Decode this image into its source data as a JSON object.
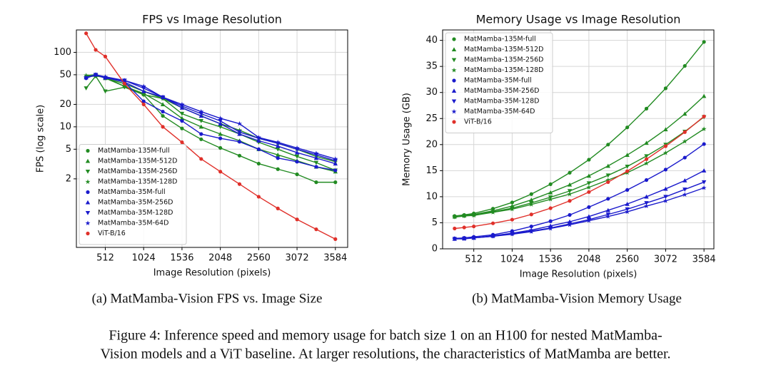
{
  "chart_data": [
    {
      "type": "line",
      "title": "FPS vs Image Resolution",
      "xlabel": "Image Resolution (pixels)",
      "ylabel": "FPS (log scale)",
      "yscale": "log",
      "grid": true,
      "legend": "lower left",
      "xlim": [
        126,
        3748
      ],
      "xticks": [
        512,
        1024,
        1536,
        2048,
        2560,
        3072,
        3584
      ],
      "ylim": [
        0.24,
        200
      ],
      "yticks": [
        2,
        5,
        10,
        20,
        50,
        100
      ],
      "x": [
        256,
        384,
        512,
        768,
        1024,
        1280,
        1536,
        1792,
        2048,
        2304,
        2560,
        2816,
        3072,
        3328,
        3584
      ],
      "series": [
        {
          "name": "MatMamba-135M-full",
          "color": "#228b22",
          "marker": "circle",
          "values": [
            47,
            48,
            46,
            35,
            27,
            14,
            9.5,
            6.8,
            5.2,
            4.1,
            3.2,
            2.7,
            2.3,
            1.8,
            1.8
          ]
        },
        {
          "name": "MatMamba-135M-512D",
          "color": "#228b22",
          "marker": "triangle-up",
          "values": [
            48,
            50,
            45,
            35,
            28,
            20,
            13,
            10,
            8,
            6.5,
            5,
            4.2,
            3.5,
            2.9,
            2.5
          ]
        },
        {
          "name": "MatMamba-135M-256D",
          "color": "#228b22",
          "marker": "triangle-down",
          "values": [
            33,
            48,
            30,
            34,
            27,
            24,
            15,
            12,
            10,
            8,
            6.2,
            5,
            4,
            3.3,
            2.6
          ]
        },
        {
          "name": "MatMamba-135M-128D",
          "color": "#228b22",
          "marker": "star",
          "values": [
            49,
            50,
            45,
            38,
            30,
            24,
            18,
            14,
            11,
            9,
            7,
            6,
            5,
            4,
            3.4
          ]
        },
        {
          "name": "MatMamba-35M-full",
          "color": "#1a1acc",
          "marker": "circle",
          "values": [
            45,
            50,
            46,
            40,
            22,
            16,
            12,
            8,
            7,
            6.3,
            5,
            3.8,
            3.4,
            2.9,
            2.6
          ]
        },
        {
          "name": "MatMamba-35M-256D",
          "color": "#1a1acc",
          "marker": "triangle-up",
          "values": [
            46,
            50,
            46,
            40,
            30,
            25,
            18,
            14,
            11,
            8,
            6.5,
            5.5,
            4.5,
            3.8,
            3.2
          ]
        },
        {
          "name": "MatMamba-35M-128D",
          "color": "#1a1acc",
          "marker": "triangle-down",
          "values": [
            45,
            50,
            45,
            42,
            33,
            25,
            19,
            15,
            12,
            8.5,
            7,
            6,
            5,
            4.2,
            3.5
          ]
        },
        {
          "name": "MatMamba-35M-64D",
          "color": "#1a1acc",
          "marker": "star",
          "values": [
            46,
            50,
            47,
            42,
            35,
            25,
            20,
            16,
            13,
            11,
            7.2,
            6.2,
            5.2,
            4.4,
            3.7
          ]
        },
        {
          "name": "ViT-B/16",
          "color": "#e0302a",
          "marker": "circle",
          "values": [
            180,
            108,
            88,
            38,
            20,
            10,
            6.2,
            3.7,
            2.5,
            1.7,
            1.15,
            0.8,
            0.57,
            0.42,
            0.31
          ]
        }
      ]
    },
    {
      "type": "line",
      "title": "Memory Usage vs Image Resolution",
      "xlabel": "Image Resolution (pixels)",
      "ylabel": "Memory Usage (GB)",
      "yscale": "linear",
      "grid": true,
      "legend": "upper left",
      "xlim": [
        96,
        3716
      ],
      "xticks": [
        512,
        1024,
        1536,
        2048,
        2560,
        3072,
        3584
      ],
      "ylim": [
        0,
        42
      ],
      "yticks": [
        0,
        5,
        10,
        15,
        20,
        25,
        30,
        35,
        40
      ],
      "x": [
        256,
        384,
        512,
        768,
        1024,
        1280,
        1536,
        1792,
        2048,
        2304,
        2560,
        2816,
        3072,
        3328,
        3584
      ],
      "series": [
        {
          "name": "MatMamba-135M-full",
          "color": "#228b22",
          "marker": "circle",
          "values": [
            6.3,
            6.5,
            6.8,
            7.7,
            8.9,
            10.5,
            12.4,
            14.6,
            17.1,
            20,
            23.3,
            26.9,
            30.8,
            35.1,
            39.7
          ]
        },
        {
          "name": "MatMamba-135M-512D",
          "color": "#228b22",
          "marker": "triangle-up",
          "values": [
            6.2,
            6.4,
            6.6,
            7.3,
            8.2,
            9.4,
            10.8,
            12.3,
            14,
            15.9,
            18,
            20.3,
            22.9,
            25.9,
            29.3
          ]
        },
        {
          "name": "MatMamba-135M-256D",
          "color": "#228b22",
          "marker": "triangle-down",
          "values": [
            6.1,
            6.3,
            6.5,
            7.1,
            7.8,
            8.8,
            9.9,
            11.1,
            12.6,
            14.1,
            15.8,
            17.8,
            20,
            22.5,
            25.3
          ]
        },
        {
          "name": "MatMamba-135M-128D",
          "color": "#228b22",
          "marker": "star",
          "values": [
            6.1,
            6.3,
            6.4,
            7,
            7.6,
            8.5,
            9.5,
            10.5,
            11.8,
            13.2,
            14.6,
            16.4,
            18.4,
            20.6,
            23
          ]
        },
        {
          "name": "MatMamba-35M-full",
          "color": "#1a1acc",
          "marker": "circle",
          "values": [
            2,
            2.1,
            2.3,
            2.7,
            3.4,
            4.3,
            5.3,
            6.5,
            8,
            9.6,
            11.3,
            13.2,
            15.2,
            17.5,
            20.1
          ]
        },
        {
          "name": "MatMamba-35M-256D",
          "color": "#1a1acc",
          "marker": "triangle-up",
          "values": [
            1.9,
            2,
            2.1,
            2.5,
            3,
            3.6,
            4.4,
            5.2,
            6.2,
            7.4,
            8.6,
            10,
            11.5,
            13.1,
            15
          ]
        },
        {
          "name": "MatMamba-35M-128D",
          "color": "#1a1acc",
          "marker": "triangle-down",
          "values": [
            1.9,
            2,
            2.1,
            2.4,
            2.9,
            3.4,
            4,
            4.8,
            5.6,
            6.6,
            7.6,
            8.8,
            10,
            11.4,
            12.8
          ]
        },
        {
          "name": "MatMamba-35M-64D",
          "color": "#1a1acc",
          "marker": "star",
          "values": [
            1.9,
            1.9,
            2.1,
            2.4,
            2.8,
            3.3,
            3.9,
            4.6,
            5.4,
            6.2,
            7.1,
            8.2,
            9.2,
            10.4,
            11.7
          ]
        },
        {
          "name": "ViT-B/16",
          "color": "#e0302a",
          "marker": "circle",
          "values": [
            3.9,
            4.1,
            4.3,
            4.9,
            5.6,
            6.6,
            7.8,
            9.2,
            10.9,
            12.8,
            14.9,
            17.2,
            19.7,
            22.4,
            25.4
          ]
        }
      ]
    }
  ],
  "subcaptions": [
    "(a) MatMamba-Vision FPS vs. Image Size",
    "(b) MatMamba-Vision Memory Usage"
  ],
  "caption": [
    "Figure 4: Inference speed and memory usage for batch size 1 on an H100 for nested MatMamba-",
    "Vision models and a ViT baseline. At larger resolutions, the characteristics of MatMamba are better."
  ]
}
